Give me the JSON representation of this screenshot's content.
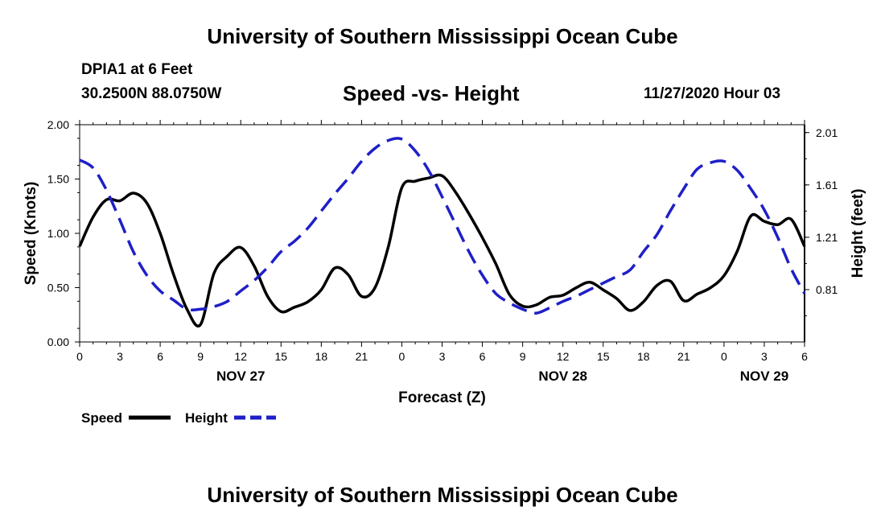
{
  "header": {
    "title": "University of Southern Mississippi Ocean Cube",
    "station": "DPIA1 at 6 Feet",
    "coordinates": "30.2500N 88.0750W",
    "forecast_time": "11/27/2020 Hour 03"
  },
  "footer": {
    "title": "University of Southern Mississippi Ocean Cube"
  },
  "colors": {
    "speed": "#000000",
    "height": "#1f1fc8"
  },
  "chart_data": {
    "type": "line",
    "title": "Speed -vs- Height",
    "xlabel": "Forecast (Z)",
    "ylabel": "Speed (Knots)",
    "ylabel_right": "Height (feet)",
    "xlim": [
      0,
      54
    ],
    "ylim": [
      0,
      2.0
    ],
    "ylim_right": [
      0.41,
      2.07
    ],
    "x_ticks": [
      0,
      3,
      6,
      9,
      12,
      15,
      18,
      21,
      24,
      27,
      30,
      33,
      36,
      39,
      42,
      45,
      48,
      51,
      54
    ],
    "x_tick_labels": [
      "0",
      "3",
      "6",
      "9",
      "12",
      "15",
      "18",
      "21",
      "0",
      "3",
      "6",
      "9",
      "12",
      "15",
      "18",
      "21",
      "0",
      "3",
      "6"
    ],
    "y_ticks": [
      0,
      0.5,
      1.0,
      1.5,
      2.0
    ],
    "y_tick_labels": [
      "0.00",
      "0.50",
      "1.00",
      "1.50",
      "2.00"
    ],
    "y_ticks_right": [
      0.81,
      1.21,
      1.61,
      2.01
    ],
    "y_tick_labels_right": [
      "0.81",
      "1.21",
      "1.61",
      "2.01"
    ],
    "date_labels": [
      {
        "x": 12,
        "label": "NOV 27"
      },
      {
        "x": 36,
        "label": "NOV 28"
      },
      {
        "x": 51,
        "label": "NOV 29"
      }
    ],
    "legend": {
      "position": "bottom-left",
      "entries": [
        "Speed",
        "Height"
      ]
    },
    "series": [
      {
        "name": "Speed",
        "axis": "left",
        "style": "solid",
        "x": [
          0,
          1,
          2,
          3,
          4,
          5,
          6,
          7,
          8,
          9,
          10,
          11,
          12,
          13,
          14,
          15,
          16,
          17,
          18,
          19,
          20,
          21,
          22,
          23,
          24,
          25,
          26,
          27,
          28,
          29,
          30,
          31,
          32,
          33,
          34,
          35,
          36,
          37,
          38,
          39,
          40,
          41,
          42,
          43,
          44,
          45,
          46,
          47,
          48,
          49,
          50,
          51,
          52,
          53,
          54
        ],
        "values": [
          0.88,
          1.15,
          1.31,
          1.3,
          1.37,
          1.28,
          1.0,
          0.62,
          0.3,
          0.16,
          0.63,
          0.79,
          0.87,
          0.7,
          0.42,
          0.28,
          0.32,
          0.37,
          0.48,
          0.68,
          0.62,
          0.42,
          0.5,
          0.88,
          1.42,
          1.48,
          1.51,
          1.53,
          1.38,
          1.18,
          0.96,
          0.72,
          0.44,
          0.33,
          0.34,
          0.41,
          0.43,
          0.5,
          0.55,
          0.48,
          0.4,
          0.29,
          0.37,
          0.52,
          0.56,
          0.38,
          0.44,
          0.5,
          0.61,
          0.84,
          1.16,
          1.11,
          1.08,
          1.13,
          0.88
        ]
      },
      {
        "name": "Height",
        "axis": "right",
        "style": "dashed",
        "x": [
          0,
          1,
          2,
          3,
          4,
          5,
          6,
          7,
          8,
          9,
          10,
          11,
          12,
          13,
          14,
          15,
          16,
          17,
          18,
          19,
          20,
          21,
          22,
          23,
          24,
          25,
          26,
          27,
          28,
          29,
          30,
          31,
          32,
          33,
          34,
          35,
          36,
          37,
          38,
          39,
          40,
          41,
          42,
          43,
          44,
          45,
          46,
          47,
          48,
          49,
          50,
          51,
          52,
          53,
          54
        ],
        "values": [
          1.8,
          1.74,
          1.57,
          1.34,
          1.1,
          0.92,
          0.8,
          0.73,
          0.66,
          0.66,
          0.68,
          0.72,
          0.8,
          0.88,
          0.98,
          1.1,
          1.18,
          1.28,
          1.41,
          1.54,
          1.66,
          1.79,
          1.89,
          1.95,
          1.96,
          1.87,
          1.72,
          1.52,
          1.31,
          1.1,
          0.92,
          0.78,
          0.71,
          0.66,
          0.63,
          0.67,
          0.72,
          0.76,
          0.81,
          0.86,
          0.91,
          0.96,
          1.1,
          1.23,
          1.41,
          1.58,
          1.73,
          1.78,
          1.79,
          1.72,
          1.58,
          1.42,
          1.21,
          0.97,
          0.78
        ]
      }
    ]
  }
}
